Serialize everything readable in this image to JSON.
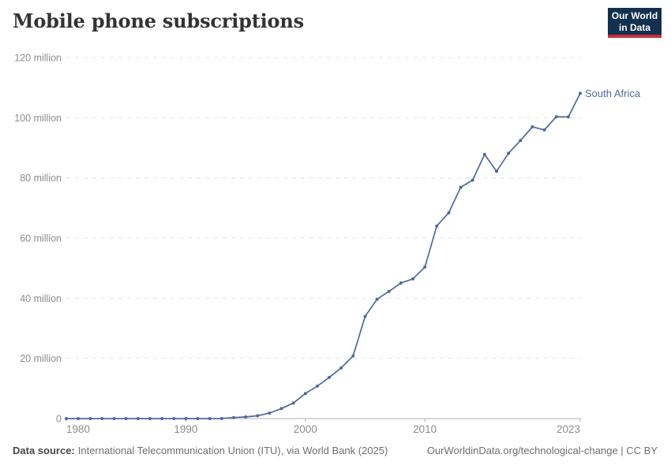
{
  "logo": {
    "line1": "Our World",
    "line2": "in Data"
  },
  "chart_data": {
    "type": "line",
    "title": "Mobile phone subscriptions",
    "entity_label": "South Africa",
    "x": [
      1980,
      1981,
      1982,
      1983,
      1984,
      1985,
      1986,
      1987,
      1988,
      1989,
      1990,
      1991,
      1992,
      1993,
      1994,
      1995,
      1996,
      1997,
      1998,
      1999,
      2000,
      2001,
      2002,
      2003,
      2004,
      2005,
      2006,
      2007,
      2008,
      2009,
      2010,
      2011,
      2012,
      2013,
      2014,
      2015,
      2016,
      2017,
      2018,
      2019,
      2020,
      2021,
      2022,
      2023
    ],
    "series": [
      {
        "name": "South Africa",
        "color": "#4c6a9c",
        "values": [
          0,
          0,
          0,
          0,
          0,
          0,
          0.001,
          0.003,
          0.004,
          0.005,
          0.006,
          0.008,
          0.013,
          0.019,
          0.34,
          0.54,
          0.95,
          1.84,
          3.34,
          5.19,
          8.34,
          10.79,
          13.7,
          16.86,
          20.84,
          33.96,
          39.66,
          42.3,
          45.07,
          46.44,
          50.37,
          64.0,
          68.4,
          76.88,
          79.27,
          87.8,
          82.2,
          88.2,
          92.43,
          96.97,
          95.96,
          100.33,
          100.26,
          108.1
        ]
      }
    ],
    "unit": "million subscriptions",
    "xlim": [
      1980,
      2023
    ],
    "ylim": [
      0,
      120
    ],
    "x_ticks": [
      1980,
      1990,
      2000,
      2010,
      2023
    ],
    "y_ticks": [
      {
        "value": 0,
        "label": "0"
      },
      {
        "value": 20,
        "label": "20 million"
      },
      {
        "value": 40,
        "label": "40 million"
      },
      {
        "value": 60,
        "label": "60 million"
      },
      {
        "value": 80,
        "label": "80 million"
      },
      {
        "value": 100,
        "label": "100 million"
      },
      {
        "value": 120,
        "label": "120 million"
      }
    ],
    "grid": true,
    "legend_position": "end-of-line"
  },
  "footer": {
    "source_label": "Data source:",
    "source_text": "International Telecommunication Union (ITU), via World Bank (2025)",
    "license_text": "OurWorldinData.org/technological-change | CC BY"
  },
  "colors": {
    "line": "#4c6a9c",
    "entity_label": "#4c6a9c",
    "logo_bg": "#12304f",
    "logo_accent": "#c7303c",
    "grid": "#e3e3e3",
    "axis": "#b0b0b0",
    "tick_label": "#8c8c8c",
    "title": "#333333",
    "footer_text": "#6f6f6f"
  }
}
